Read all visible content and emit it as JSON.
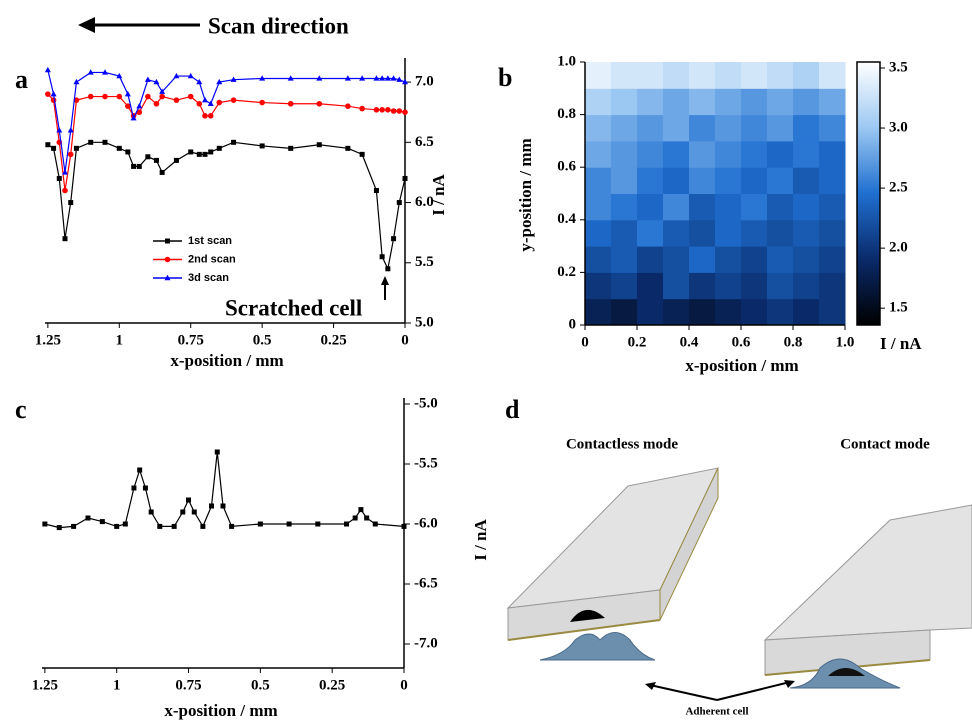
{
  "chart_data": [
    {
      "type": "line",
      "label": "a",
      "annotation": "Scan direction",
      "note": "Scratched cell",
      "xlabel": "x-position / mm",
      "ylabel": "I / nA",
      "x": [
        0,
        0.02,
        0.04,
        0.06,
        0.08,
        0.1,
        0.15,
        0.2,
        0.3,
        0.4,
        0.5,
        0.6,
        0.65,
        0.68,
        0.7,
        0.72,
        0.75,
        0.8,
        0.85,
        0.87,
        0.9,
        0.93,
        0.95,
        0.97,
        1.0,
        1.05,
        1.1,
        1.15,
        1.17,
        1.19,
        1.21,
        1.23,
        1.25
      ],
      "series": [
        {
          "name": "1st scan",
          "color": "#000000",
          "marker": "square",
          "values": [
            6.2,
            6.0,
            5.7,
            5.45,
            5.55,
            6.1,
            6.4,
            6.45,
            6.48,
            6.45,
            6.47,
            6.5,
            6.45,
            6.42,
            6.4,
            6.4,
            6.42,
            6.35,
            6.25,
            6.35,
            6.38,
            6.3,
            6.3,
            6.42,
            6.45,
            6.5,
            6.5,
            6.45,
            6.0,
            5.7,
            6.2,
            6.45,
            6.48
          ]
        },
        {
          "name": "2nd scan",
          "color": "#ff0000",
          "marker": "circle",
          "values": [
            6.75,
            6.76,
            6.76,
            6.77,
            6.77,
            6.77,
            6.78,
            6.8,
            6.82,
            6.82,
            6.83,
            6.85,
            6.83,
            6.72,
            6.72,
            6.82,
            6.88,
            6.85,
            6.88,
            6.82,
            6.88,
            6.75,
            6.72,
            6.8,
            6.88,
            6.88,
            6.88,
            6.85,
            6.4,
            6.1,
            6.5,
            6.85,
            6.9
          ]
        },
        {
          "name": "3d scan",
          "color": "#0000ff",
          "marker": "triangle",
          "values": [
            7.0,
            7.02,
            7.03,
            7.03,
            7.03,
            7.03,
            7.03,
            7.03,
            7.03,
            7.03,
            7.03,
            7.02,
            7.0,
            6.82,
            6.85,
            7.0,
            7.05,
            7.05,
            6.92,
            7.0,
            7.02,
            6.8,
            6.7,
            6.9,
            7.05,
            7.08,
            7.08,
            7.0,
            6.6,
            6.25,
            6.6,
            6.9,
            7.1
          ]
        }
      ],
      "xlim": [
        1.26,
        0
      ],
      "xticks": [
        1.25,
        1,
        0.75,
        0.5,
        0.25,
        0
      ],
      "ylim": [
        5.0,
        7.2
      ],
      "yticks": [
        {
          "value": 5,
          "label": "5.0"
        },
        5.5,
        {
          "value": 6,
          "label": "6.0"
        },
        6.5,
        {
          "value": 7,
          "label": "7.0"
        }
      ]
    },
    {
      "type": "heatmap",
      "label": "b",
      "xlabel": "x-position / mm",
      "ylabel": "y-position / mm",
      "colorbar_label": "I / nA",
      "xlim": [
        0,
        1
      ],
      "xticks": [
        0,
        0.2,
        0.4,
        0.6,
        0.8,
        {
          "value": 1,
          "label": "1.0"
        }
      ],
      "ylim": [
        0,
        1
      ],
      "yticks": [
        0,
        0.2,
        0.4,
        0.6,
        0.8,
        {
          "value": 1,
          "label": "1.0"
        }
      ],
      "zlim": [
        1.36,
        3.55
      ],
      "zticks": [
        1.5,
        {
          "value": 2,
          "label": "2.0"
        },
        2.5,
        {
          "value": 3,
          "label": "3.0"
        },
        3.5
      ],
      "colorscale": [
        "#000000",
        "#0a2a6a",
        "#1f6fd0",
        "#9cc8f2",
        "#ffffff"
      ],
      "z": [
        [
          1.8,
          1.7,
          1.9,
          1.8,
          1.7,
          1.8,
          1.9,
          2.0,
          1.9,
          2.0
        ],
        [
          2.0,
          2.1,
          1.9,
          2.2,
          2.0,
          2.1,
          2.0,
          2.2,
          2.1,
          2.0
        ],
        [
          2.2,
          2.3,
          2.1,
          2.2,
          2.4,
          2.2,
          2.1,
          2.3,
          2.2,
          2.1
        ],
        [
          2.4,
          2.3,
          2.5,
          2.3,
          2.2,
          2.4,
          2.3,
          2.2,
          2.3,
          2.2
        ],
        [
          2.6,
          2.5,
          2.4,
          2.6,
          2.3,
          2.4,
          2.5,
          2.3,
          2.4,
          2.3
        ],
        [
          2.6,
          2.7,
          2.5,
          2.4,
          2.6,
          2.5,
          2.4,
          2.5,
          2.3,
          2.4
        ],
        [
          2.8,
          2.7,
          2.6,
          2.5,
          2.7,
          2.6,
          2.5,
          2.4,
          2.5,
          2.4
        ],
        [
          2.9,
          2.8,
          2.7,
          2.8,
          2.6,
          2.7,
          2.6,
          2.7,
          2.5,
          2.6
        ],
        [
          3.1,
          3.0,
          2.9,
          2.8,
          2.9,
          2.8,
          2.7,
          2.8,
          2.7,
          2.8
        ],
        [
          3.4,
          3.3,
          3.3,
          3.2,
          3.3,
          3.2,
          3.3,
          3.2,
          3.1,
          3.3
        ]
      ]
    },
    {
      "type": "line",
      "label": "c",
      "xlabel": "x-position / mm",
      "ylabel": "I / nA",
      "x": [
        0,
        0.1,
        0.13,
        0.15,
        0.17,
        0.2,
        0.3,
        0.4,
        0.5,
        0.6,
        0.63,
        0.65,
        0.67,
        0.7,
        0.73,
        0.75,
        0.77,
        0.8,
        0.85,
        0.88,
        0.9,
        0.92,
        0.94,
        0.97,
        1.0,
        1.05,
        1.1,
        1.15,
        1.2,
        1.25
      ],
      "series": [
        {
          "color": "#000000",
          "marker": "square",
          "values": [
            -6.02,
            -6.0,
            -5.95,
            -5.88,
            -5.95,
            -6.0,
            -6.0,
            -6.0,
            -6.0,
            -6.02,
            -5.85,
            -5.4,
            -5.85,
            -6.02,
            -5.9,
            -5.8,
            -5.9,
            -6.02,
            -6.02,
            -5.9,
            -5.7,
            -5.55,
            -5.7,
            -6.0,
            -6.02,
            -5.98,
            -5.95,
            -6.02,
            -6.03,
            -6.0
          ]
        }
      ],
      "xlim": [
        1.26,
        0
      ],
      "xticks": [
        1.25,
        1,
        0.75,
        0.5,
        0.25,
        0
      ],
      "ylim": [
        -7.2,
        -4.95
      ],
      "yticks": [
        {
          "value": -5,
          "label": "-5.0"
        },
        -5.5,
        {
          "value": -6,
          "label": "-6.0"
        },
        -6.5,
        {
          "value": -7,
          "label": "-7.0"
        }
      ]
    }
  ],
  "diagram": {
    "label": "d",
    "left_title": "Contactless mode",
    "right_title": "Contact mode",
    "annotation": "Adherent cell"
  }
}
